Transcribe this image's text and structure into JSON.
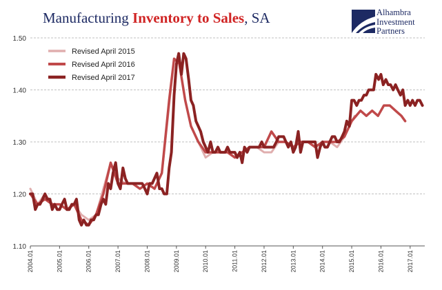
{
  "title": {
    "part1": "Manufacturing ",
    "part2": "Inventory to Sales",
    "part3": ", SA"
  },
  "logo": {
    "line1": "Alhambra",
    "line2": "Investment",
    "line3": "Partners"
  },
  "colors": {
    "title": "#1d2a63",
    "accent": "#d02424",
    "grid": "#bfbfbf"
  },
  "chart_data": {
    "type": "line",
    "title": "Manufacturing Inventory to Sales, SA",
    "ylim": [
      1.1,
      1.5
    ],
    "yticks": [
      "1.10",
      "1.20",
      "1.30",
      "1.40",
      "1.50"
    ],
    "x_start": 2004.0,
    "x_end": 2017.5,
    "xticks": [
      "2004.01",
      "2005.01",
      "2006.01",
      "2007.01",
      "2008.01",
      "2009.01",
      "2010.01",
      "2011.01",
      "2012.01",
      "2013.01",
      "2014.01",
      "2015.01",
      "2016.01",
      "2017.01"
    ],
    "grid": "horizontal dashed",
    "legend_position": "top-left",
    "series": [
      {
        "name": "Revised April 2015",
        "color": "#e0aeae",
        "width": 3,
        "x": [
          2004.0,
          2004.25,
          2004.5,
          2004.75,
          2005.0,
          2005.25,
          2005.5,
          2005.75,
          2006.0,
          2006.25,
          2006.5,
          2006.75,
          2007.0,
          2007.25,
          2007.5,
          2007.75,
          2008.0,
          2008.25,
          2008.5,
          2008.75,
          2008.92,
          2009.1,
          2009.3,
          2009.5,
          2009.75,
          2010.0,
          2010.25,
          2010.5,
          2010.75,
          2011.0,
          2011.25,
          2011.5,
          2011.75,
          2012.0,
          2012.25,
          2012.5,
          2012.75,
          2013.0,
          2013.25,
          2013.5,
          2013.75,
          2014.0,
          2014.25,
          2014.5,
          2014.75,
          2015.0,
          2015.1
        ],
        "y": [
          1.21,
          1.18,
          1.2,
          1.18,
          1.18,
          1.17,
          1.18,
          1.16,
          1.15,
          1.16,
          1.21,
          1.26,
          1.23,
          1.22,
          1.22,
          1.21,
          1.22,
          1.21,
          1.24,
          1.37,
          1.46,
          1.45,
          1.38,
          1.33,
          1.3,
          1.27,
          1.28,
          1.28,
          1.28,
          1.27,
          1.28,
          1.29,
          1.29,
          1.28,
          1.28,
          1.3,
          1.3,
          1.29,
          1.3,
          1.3,
          1.29,
          1.3,
          1.3,
          1.29,
          1.31,
          1.34,
          1.35
        ]
      },
      {
        "name": "Revised April 2016",
        "color": "#c0494a",
        "width": 3.5,
        "x": [
          2004.0,
          2004.25,
          2004.5,
          2004.75,
          2005.0,
          2005.25,
          2005.5,
          2005.75,
          2006.0,
          2006.25,
          2006.5,
          2006.75,
          2007.0,
          2007.25,
          2007.5,
          2007.75,
          2008.0,
          2008.25,
          2008.5,
          2008.75,
          2008.92,
          2009.1,
          2009.3,
          2009.5,
          2009.75,
          2010.0,
          2010.25,
          2010.5,
          2010.75,
          2011.0,
          2011.25,
          2011.5,
          2011.75,
          2012.0,
          2012.25,
          2012.5,
          2012.75,
          2013.0,
          2013.25,
          2013.5,
          2013.75,
          2014.0,
          2014.25,
          2014.5,
          2014.75,
          2015.0,
          2015.15,
          2015.3,
          2015.5,
          2015.7,
          2015.9,
          2016.1,
          2016.3,
          2016.5,
          2016.7,
          2016.83
        ],
        "y": [
          1.2,
          1.18,
          1.19,
          1.18,
          1.18,
          1.17,
          1.18,
          1.15,
          1.14,
          1.16,
          1.2,
          1.26,
          1.22,
          1.22,
          1.22,
          1.21,
          1.22,
          1.21,
          1.24,
          1.38,
          1.46,
          1.45,
          1.38,
          1.33,
          1.3,
          1.28,
          1.28,
          1.28,
          1.28,
          1.27,
          1.28,
          1.29,
          1.29,
          1.29,
          1.32,
          1.3,
          1.3,
          1.29,
          1.3,
          1.3,
          1.29,
          1.3,
          1.3,
          1.3,
          1.31,
          1.34,
          1.35,
          1.36,
          1.35,
          1.36,
          1.35,
          1.37,
          1.37,
          1.36,
          1.35,
          1.34
        ]
      },
      {
        "name": "Revised April 2017",
        "color": "#8b2222",
        "width": 4,
        "x": [
          2004.0,
          2004.08,
          2004.17,
          2004.25,
          2004.33,
          2004.42,
          2004.5,
          2004.58,
          2004.67,
          2004.75,
          2004.83,
          2004.92,
          2005.0,
          2005.08,
          2005.17,
          2005.25,
          2005.33,
          2005.42,
          2005.5,
          2005.58,
          2005.67,
          2005.75,
          2005.83,
          2005.92,
          2006.0,
          2006.08,
          2006.17,
          2006.25,
          2006.33,
          2006.42,
          2006.5,
          2006.58,
          2006.67,
          2006.75,
          2006.83,
          2006.92,
          2007.0,
          2007.08,
          2007.17,
          2007.25,
          2007.33,
          2007.42,
          2007.5,
          2007.58,
          2007.67,
          2007.75,
          2007.83,
          2007.92,
          2008.0,
          2008.08,
          2008.17,
          2008.25,
          2008.33,
          2008.42,
          2008.5,
          2008.58,
          2008.67,
          2008.75,
          2008.83,
          2008.92,
          2009.0,
          2009.08,
          2009.17,
          2009.25,
          2009.33,
          2009.42,
          2009.5,
          2009.58,
          2009.67,
          2009.75,
          2009.83,
          2009.92,
          2010.0,
          2010.08,
          2010.17,
          2010.25,
          2010.33,
          2010.42,
          2010.5,
          2010.58,
          2010.67,
          2010.75,
          2010.83,
          2010.92,
          2011.0,
          2011.08,
          2011.17,
          2011.25,
          2011.33,
          2011.42,
          2011.5,
          2011.58,
          2011.67,
          2011.75,
          2011.83,
          2011.92,
          2012.0,
          2012.08,
          2012.17,
          2012.25,
          2012.33,
          2012.42,
          2012.5,
          2012.58,
          2012.67,
          2012.75,
          2012.83,
          2012.92,
          2013.0,
          2013.08,
          2013.17,
          2013.25,
          2013.33,
          2013.42,
          2013.5,
          2013.58,
          2013.67,
          2013.75,
          2013.83,
          2013.92,
          2014.0,
          2014.08,
          2014.17,
          2014.25,
          2014.33,
          2014.42,
          2014.5,
          2014.58,
          2014.67,
          2014.75,
          2014.83,
          2014.92,
          2015.0,
          2015.08,
          2015.17,
          2015.25,
          2015.33,
          2015.42,
          2015.5,
          2015.58,
          2015.67,
          2015.75,
          2015.83,
          2015.92,
          2016.0,
          2016.08,
          2016.17,
          2016.25,
          2016.33,
          2016.42,
          2016.5,
          2016.58,
          2016.67,
          2016.75,
          2016.83,
          2016.92,
          2017.0,
          2017.08,
          2017.17,
          2017.25,
          2017.33,
          2017.42
        ],
        "y": [
          1.2,
          1.2,
          1.17,
          1.18,
          1.18,
          1.19,
          1.2,
          1.19,
          1.19,
          1.17,
          1.18,
          1.17,
          1.17,
          1.18,
          1.19,
          1.17,
          1.17,
          1.18,
          1.18,
          1.19,
          1.15,
          1.14,
          1.15,
          1.14,
          1.14,
          1.15,
          1.15,
          1.16,
          1.16,
          1.18,
          1.19,
          1.18,
          1.22,
          1.21,
          1.24,
          1.26,
          1.22,
          1.21,
          1.25,
          1.23,
          1.22,
          1.22,
          1.22,
          1.22,
          1.22,
          1.22,
          1.22,
          1.21,
          1.2,
          1.22,
          1.22,
          1.23,
          1.24,
          1.21,
          1.21,
          1.2,
          1.2,
          1.25,
          1.28,
          1.39,
          1.45,
          1.47,
          1.43,
          1.47,
          1.46,
          1.42,
          1.38,
          1.37,
          1.34,
          1.33,
          1.32,
          1.3,
          1.29,
          1.28,
          1.3,
          1.28,
          1.28,
          1.29,
          1.28,
          1.28,
          1.28,
          1.29,
          1.28,
          1.28,
          1.28,
          1.27,
          1.28,
          1.26,
          1.29,
          1.28,
          1.29,
          1.29,
          1.29,
          1.29,
          1.29,
          1.3,
          1.29,
          1.29,
          1.29,
          1.29,
          1.29,
          1.3,
          1.31,
          1.31,
          1.31,
          1.3,
          1.29,
          1.3,
          1.28,
          1.29,
          1.32,
          1.28,
          1.3,
          1.3,
          1.3,
          1.3,
          1.3,
          1.3,
          1.27,
          1.29,
          1.3,
          1.29,
          1.29,
          1.3,
          1.31,
          1.31,
          1.3,
          1.3,
          1.31,
          1.32,
          1.34,
          1.33,
          1.38,
          1.38,
          1.37,
          1.38,
          1.38,
          1.39,
          1.39,
          1.4,
          1.4,
          1.4,
          1.43,
          1.42,
          1.43,
          1.41,
          1.42,
          1.41,
          1.41,
          1.4,
          1.41,
          1.4,
          1.39,
          1.4,
          1.37,
          1.38,
          1.37,
          1.38,
          1.37,
          1.38,
          1.38,
          1.37
        ]
      }
    ]
  }
}
